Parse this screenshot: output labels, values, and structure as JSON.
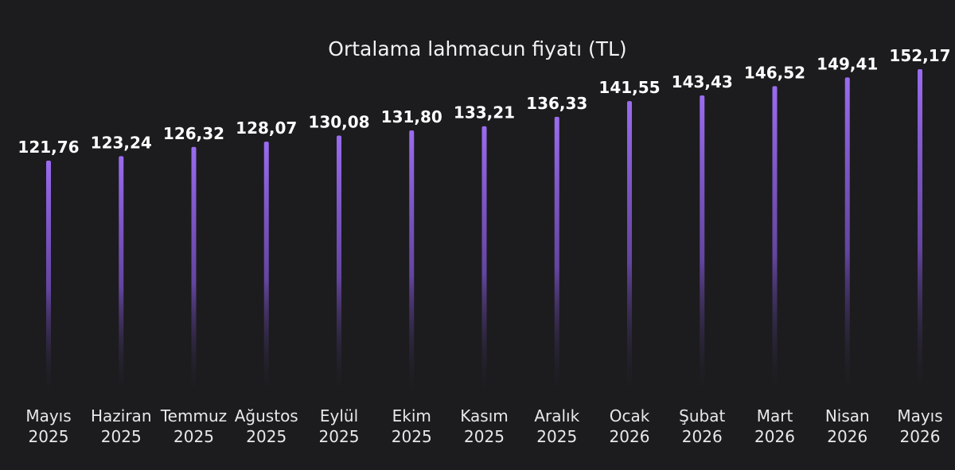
{
  "chart_data": {
    "type": "bar",
    "title": "Ortalama lahmacun fiyatı (TL)",
    "xlabel": "",
    "ylabel": "",
    "categories": [
      [
        "Mayıs",
        "2025"
      ],
      [
        "Haziran",
        "2025"
      ],
      [
        "Temmuz",
        "2025"
      ],
      [
        "Ağustos",
        "2025"
      ],
      [
        "Eylül",
        "2025"
      ],
      [
        "Ekim",
        "2025"
      ],
      [
        "Kasım",
        "2025"
      ],
      [
        "Aralık",
        "2025"
      ],
      [
        "Ocak",
        "2026"
      ],
      [
        "Şubat",
        "2026"
      ],
      [
        "Mart",
        "2026"
      ],
      [
        "Nisan",
        "2026"
      ],
      [
        "Mayıs",
        "2026"
      ]
    ],
    "values": [
      121.76,
      123.24,
      126.32,
      128.07,
      130.08,
      131.8,
      133.21,
      136.33,
      141.55,
      143.43,
      146.52,
      149.41,
      152.17
    ],
    "value_labels": [
      "121,76",
      "123,24",
      "126,32",
      "128,07",
      "130,08",
      "131,80",
      "133,21",
      "136,33",
      "141,55",
      "143,43",
      "146,52",
      "149,41",
      "152,17"
    ],
    "ylim": [
      0,
      152.17
    ],
    "grid": false,
    "legend": "none",
    "bar_color": "#9b6cf0",
    "bar_fade_color": "#1c1c1e"
  }
}
